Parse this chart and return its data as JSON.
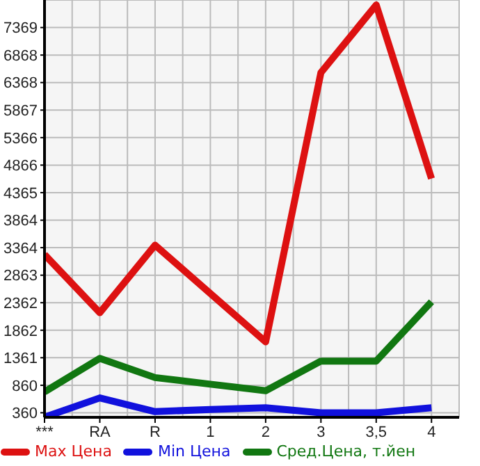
{
  "chart_data": {
    "type": "line",
    "categories": [
      "***",
      "RA",
      "R",
      "1",
      "2",
      "3",
      "3,5",
      "4"
    ],
    "series": [
      {
        "name": "Max Цена",
        "color": "#dd1111",
        "values": [
          3240,
          2180,
          3410,
          2530,
          1650,
          6550,
          7780,
          4620
        ]
      },
      {
        "name": "Min Цена",
        "color": "#1111dd",
        "values": [
          280,
          630,
          380,
          420,
          450,
          360,
          360,
          450
        ]
      },
      {
        "name": "Сред.Цена, т.йен",
        "color": "#117711",
        "values": [
          740,
          1350,
          1000,
          880,
          760,
          1300,
          1300,
          2380
        ]
      }
    ],
    "ylim": [
      277,
      7870
    ],
    "yticks": [
      360,
      860,
      1361,
      1862,
      2362,
      2863,
      3364,
      3864,
      4365,
      4866,
      5366,
      5867,
      6368,
      6868,
      7369
    ],
    "grid": true,
    "legend": "bottom",
    "marker": "none",
    "line_style": "solid"
  }
}
